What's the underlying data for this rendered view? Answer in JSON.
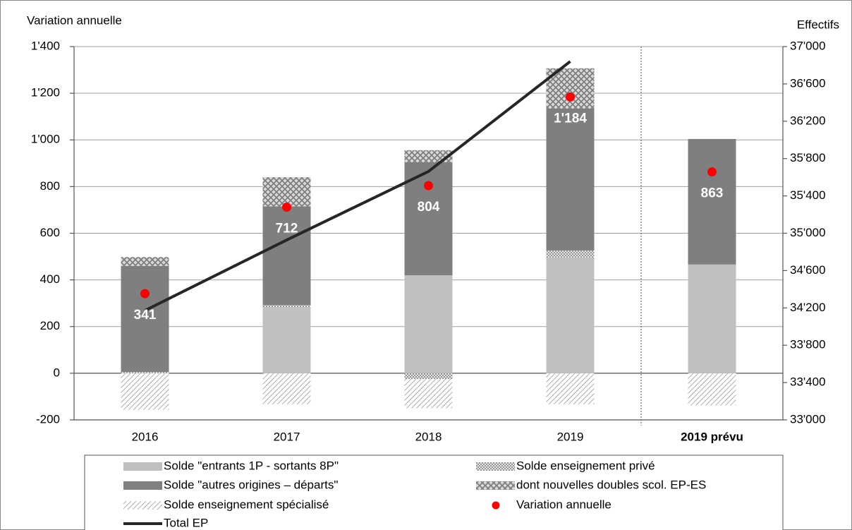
{
  "chart_data": {
    "type": "bar",
    "stacked": true,
    "y_title": "Variation annuelle",
    "y2_title": "Effectifs",
    "categories": [
      "2016",
      "2017",
      "2018",
      "2019",
      "2019 prévu"
    ],
    "series": [
      {
        "name": "Solde \"entrants 1P - sortants 8P\"",
        "color": "#c0c0c0",
        "pattern": "solid",
        "values": [
          0,
          284,
          420,
          496,
          466
        ]
      },
      {
        "name": "Solde enseignement privé",
        "color": "#7f7f7f",
        "pattern": "fine-crosshatch",
        "values": [
          5,
          8,
          -25,
          30,
          0
        ]
      },
      {
        "name": "Solde \"autres origines – départs\"",
        "color": "#7f7f7f",
        "pattern": "solid",
        "values": [
          455,
          423,
          484,
          608,
          538
        ]
      },
      {
        "name": "dont nouvelles doubles scol. EP-ES",
        "color": "#7f7f7f",
        "pattern": "coarse-crosshatch",
        "values": [
          38,
          125,
          52,
          173,
          0
        ]
      },
      {
        "name": "Solde enseignement spécialisé",
        "color": "#a6a6a6",
        "pattern": "diagonal",
        "values": [
          -157,
          -133,
          -125,
          -133,
          -138
        ]
      }
    ],
    "points": {
      "name": "Variation annuelle",
      "color": "#ff0000",
      "values": [
        341,
        712,
        804,
        1184,
        863
      ],
      "value_labels": [
        "341",
        "712",
        "804",
        "1'184",
        "863"
      ]
    },
    "line": {
      "name": "Total EP",
      "color": "#262626",
      "axis": "y2",
      "values": [
        34172,
        34928,
        35662,
        36841,
        null
      ]
    },
    "ylim": [
      -200,
      1400
    ],
    "yticks": [
      -200,
      0,
      200,
      400,
      600,
      800,
      {
        "value": 1000,
        "label": "1'000"
      },
      {
        "value": 1200,
        "label": "1'200"
      },
      {
        "value": 1400,
        "label": "1'400"
      }
    ],
    "y2lim": [
      33000,
      37000
    ],
    "y2ticks": [
      {
        "value": 33000,
        "label": "33'000"
      },
      {
        "value": 33400,
        "label": "33'400"
      },
      {
        "value": 33800,
        "label": "33'800"
      },
      {
        "value": 34200,
        "label": "34'200"
      },
      {
        "value": 34600,
        "label": "34'600"
      },
      {
        "value": 35000,
        "label": "35'000"
      },
      {
        "value": 35400,
        "label": "35'400"
      },
      {
        "value": 35800,
        "label": "35'800"
      },
      {
        "value": 36200,
        "label": "36'200"
      },
      {
        "value": 36600,
        "label": "36'600"
      },
      {
        "value": 37000,
        "label": "37'000"
      }
    ],
    "grid": true
  }
}
